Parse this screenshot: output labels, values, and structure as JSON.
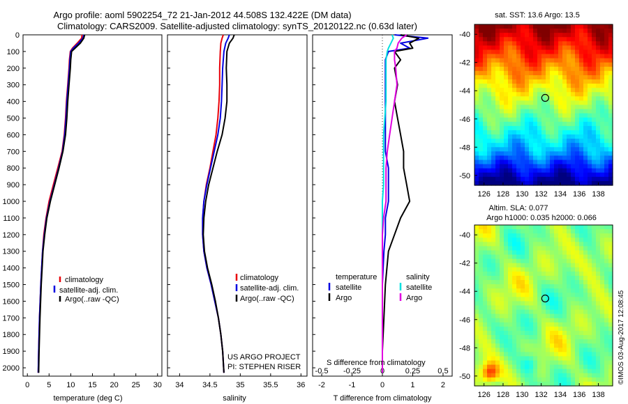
{
  "figure": {
    "title_line1": "Argo profile: aoml 5902254_72 21-Jan-2012 44.508S 132.422E (DM data)",
    "title_line2": "Climatology: CARS2009. Satellite-adjusted climatology: synTS_20120122.nc (0.63d later)",
    "project_line1": "US ARGO PROJECT",
    "project_line2": "PI: STEPHEN RISER",
    "imos_stamp": "©IMOS 03-Aug-2017 12:08:45"
  },
  "colors": {
    "climatology": "#e8000a",
    "satellite": "#0000e0",
    "argo": "#000000",
    "sat_salinity": "#00e0e0",
    "argo_salinity": "#e000e0"
  },
  "chart_data": [
    {
      "type": "line",
      "xlabel": "temperature (deg C)",
      "xlim": [
        -1,
        31
      ],
      "ylim": [
        2050,
        0
      ],
      "x_ticks": [
        0,
        5,
        10,
        15,
        20,
        25,
        30
      ],
      "y_ticks": [
        0,
        100,
        200,
        300,
        400,
        500,
        600,
        700,
        800,
        900,
        1000,
        1100,
        1200,
        1300,
        1400,
        1500,
        1600,
        1700,
        1800,
        1900,
        2000
      ],
      "legend": [
        "climatology",
        "satellite-adj. clim.",
        "Argo(..raw -QC)"
      ],
      "depth": [
        0,
        20,
        50,
        80,
        100,
        150,
        200,
        300,
        400,
        500,
        600,
        700,
        800,
        900,
        1000,
        1100,
        1200,
        1300,
        1400,
        1500,
        1700,
        1900,
        2030
      ],
      "series": [
        {
          "name": "climatology",
          "color_key": "climatology",
          "values": [
            12.6,
            12.5,
            11.5,
            10.4,
            9.9,
            9.7,
            9.6,
            9.3,
            9.0,
            8.8,
            8.5,
            8.0,
            7.0,
            6.0,
            5.0,
            4.3,
            3.8,
            3.5,
            3.3,
            3.1,
            2.8,
            2.6,
            2.5
          ]
        },
        {
          "name": "satellite-adj. clim.",
          "color_key": "satellite",
          "values": [
            13.0,
            12.8,
            11.8,
            10.6,
            10.0,
            9.8,
            9.7,
            9.4,
            9.1,
            8.9,
            8.6,
            8.1,
            7.2,
            6.2,
            5.2,
            4.4,
            3.9,
            3.5,
            3.3,
            3.1,
            2.8,
            2.6,
            2.5
          ]
        },
        {
          "name": "Argo(..raw -QC)",
          "color_key": "argo",
          "values": [
            13.2,
            13.0,
            12.2,
            11.0,
            10.2,
            10.0,
            9.9,
            9.6,
            9.3,
            9.1,
            8.8,
            8.2,
            7.3,
            6.3,
            5.3,
            4.5,
            4.0,
            3.6,
            3.4,
            3.2,
            2.9,
            2.7,
            2.6
          ]
        }
      ]
    },
    {
      "type": "line",
      "xlabel": "salinity",
      "xlim": [
        33.8,
        36.1
      ],
      "ylim": [
        2050,
        0
      ],
      "x_ticks": [
        34,
        34.5,
        35,
        35.5,
        36
      ],
      "legend": [
        "climatology",
        "satellite-adj. clim.",
        "Argo(..raw -QC)"
      ],
      "depth": [
        0,
        20,
        50,
        100,
        200,
        300,
        400,
        500,
        600,
        700,
        800,
        900,
        1000,
        1100,
        1200,
        1300,
        1400,
        1500,
        1600,
        1700,
        1800,
        1900,
        2030
      ],
      "series": [
        {
          "name": "climatology",
          "color_key": "climatology",
          "values": [
            34.72,
            34.7,
            34.68,
            34.67,
            34.66,
            34.66,
            34.65,
            34.63,
            34.6,
            34.55,
            34.5,
            34.44,
            34.4,
            34.38,
            34.38,
            34.4,
            34.45,
            34.52,
            34.58,
            34.64,
            34.68,
            34.71,
            34.73
          ]
        },
        {
          "name": "satellite-adj. clim.",
          "color_key": "satellite",
          "values": [
            34.82,
            34.8,
            34.76,
            34.73,
            34.71,
            34.7,
            34.69,
            34.67,
            34.63,
            34.57,
            34.51,
            34.45,
            34.4,
            34.38,
            34.38,
            34.4,
            34.45,
            34.52,
            34.58,
            34.64,
            34.68,
            34.71,
            34.73
          ]
        },
        {
          "name": "Argo(..raw -QC)",
          "color_key": "argo",
          "values": [
            34.9,
            34.88,
            34.82,
            34.78,
            34.77,
            34.78,
            34.78,
            34.75,
            34.7,
            34.62,
            34.55,
            34.48,
            34.43,
            34.4,
            34.39,
            34.41,
            34.46,
            34.53,
            34.59,
            34.64,
            34.68,
            34.71,
            34.73
          ]
        }
      ]
    },
    {
      "type": "line",
      "xlabel": "T difference from climatology",
      "xlabel_top": "S difference from climatology",
      "xlim": [
        -2.3,
        2.3
      ],
      "ylim": [
        2050,
        0
      ],
      "x_ticks": [
        -2,
        -1,
        0,
        1,
        2
      ],
      "x_tick_labels_bottom": [
        "-2",
        "-1",
        "0",
        "1",
        "2"
      ],
      "s_ticks": [
        -0.5,
        -0.25,
        0,
        0.25,
        0.5
      ],
      "s_tick_labels": [
        "-0.5",
        "-0.25",
        "0",
        "0.25",
        "0.5"
      ],
      "s_scale": 0.25,
      "legend_temperature_title": "temperature",
      "legend_salinity_title": "salinity",
      "legend": [
        "satellite",
        "Argo",
        "satellite",
        "Argo"
      ],
      "depth": [
        0,
        20,
        50,
        80,
        100,
        150,
        200,
        300,
        400,
        500,
        600,
        700,
        800,
        900,
        1000,
        1100,
        1200,
        1300,
        1500,
        1700,
        1900,
        2030
      ],
      "series": [
        {
          "name": "satellite",
          "color_key": "satellite",
          "variable": "T",
          "values": [
            0.4,
            1.5,
            0.6,
            0.9,
            0.2,
            0.1,
            0.1,
            0.1,
            0.1,
            0.1,
            0.1,
            0.1,
            0.2,
            0.2,
            0.2,
            0.1,
            0.1,
            0.05,
            0.0,
            0.0,
            0.0,
            0.0
          ]
        },
        {
          "name": "Argo",
          "color_key": "argo",
          "variable": "T",
          "values": [
            0.6,
            1.2,
            0.9,
            1.0,
            0.4,
            0.6,
            0.4,
            0.5,
            0.4,
            0.5,
            0.6,
            0.7,
            0.7,
            0.8,
            0.9,
            0.6,
            0.4,
            0.2,
            0.1,
            0.05,
            0.0,
            0.0
          ]
        },
        {
          "name": "satellite",
          "color_key": "sat_salinity",
          "variable": "S",
          "values": [
            0.08,
            0.09,
            0.07,
            0.05,
            0.04,
            0.03,
            0.03,
            0.03,
            0.03,
            0.02,
            0.01,
            0.01,
            0.01,
            0.01,
            0.0,
            0.0,
            0.0,
            0.0,
            0.0,
            0.0,
            0.0,
            0.0
          ]
        },
        {
          "name": "Argo",
          "color_key": "argo_salinity",
          "variable": "S",
          "values": [
            0.2,
            0.16,
            0.13,
            0.12,
            0.1,
            0.1,
            0.11,
            0.12,
            0.1,
            0.08,
            0.06,
            0.04,
            0.03,
            0.03,
            0.03,
            0.01,
            0.0,
            0.0,
            0.0,
            0.0,
            0.0,
            0.0
          ]
        }
      ]
    },
    {
      "type": "heatmap",
      "title": "sat. SST: 13.6  Argo: 13.5",
      "x_ticks": [
        126,
        128,
        130,
        132,
        134,
        136,
        138
      ],
      "y_ticks": [
        -40,
        -42,
        -44,
        -46,
        -48,
        -50
      ],
      "xlim": [
        125,
        139.5
      ],
      "ylim": [
        -50.7,
        -39.3
      ],
      "marker": {
        "lon": 132.422,
        "lat": -44.508
      },
      "colormap": "jet"
    },
    {
      "type": "heatmap",
      "title_line1": "Altim. SLA: 0.077",
      "title_line2": "Argo h1000: 0.035 h2000: 0.066",
      "x_ticks": [
        126,
        128,
        130,
        132,
        134,
        136,
        138
      ],
      "y_ticks": [
        -40,
        -42,
        -44,
        -46,
        -48,
        -50
      ],
      "xlim": [
        125,
        139.5
      ],
      "ylim": [
        -50.7,
        -39.3
      ],
      "marker": {
        "lon": 132.422,
        "lat": -44.508
      },
      "colormap": "jet"
    }
  ]
}
